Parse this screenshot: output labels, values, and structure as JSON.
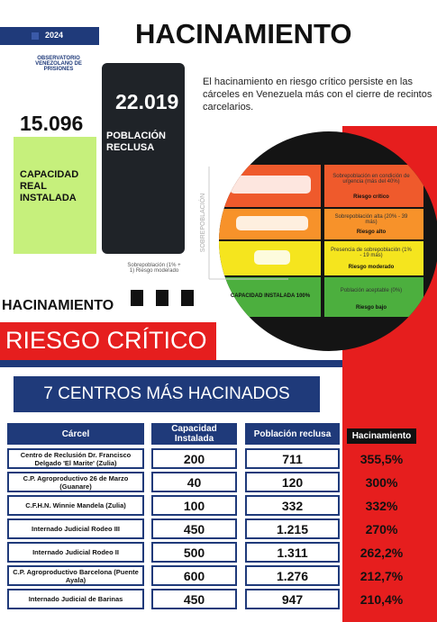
{
  "header": {
    "year": "2024",
    "logo": "OBSERVATORIO VENEZOLANO DE PRISIONES",
    "title": "HACINAMIENTO",
    "description": "El hacinamiento en riesgo crítico persiste en las cárceles en Venezuela más con el cierre de recintos carcelarios."
  },
  "capacity": {
    "value": "15.096",
    "label": "CAPACIDAD REAL INSTALADA"
  },
  "population": {
    "value": "22.019",
    "label": "POBLACIÓN RECLUSA"
  },
  "scale": {
    "axis": "SOBREPOBLACIÓN",
    "levels": [
      {
        "note": "Sobrepoblación en condición de urgencia (más del 40%)",
        "risk": "Riesgo crítico"
      },
      {
        "note": "Sobrepoblación alta (20% - 39 más)",
        "risk": "Riesgo alto"
      },
      {
        "note": "Presencia de sobrepoblación (1% - 19 más)",
        "risk": "Riesgo moderado"
      },
      {
        "note": "Población aceptable (0%)",
        "risk": "Riesgo bajo"
      }
    ],
    "base": "CAPACIDAD INSTALADA 100%",
    "example": "Sobrepoblación (1% + 1) Riesgo moderado"
  },
  "section": {
    "label": "HACINAMIENTO",
    "banner": "RIESGO CRÍTICO",
    "subtitle": "7 CENTROS MÁS HACINADOS"
  },
  "table": {
    "headers": [
      "Cárcel",
      "Capacidad Instalada",
      "Población reclusa",
      "Hacinamiento"
    ],
    "rows": [
      [
        "Centro de Reclusión Dr. Francisco Delgado 'El Marite' (Zulia)",
        "200",
        "711",
        "355,5%"
      ],
      [
        "C.P. Agroproductivo 26 de Marzo (Guanare)",
        "40",
        "120",
        "300%"
      ],
      [
        "C.F.H.N. Winnie Mandela (Zulia)",
        "100",
        "332",
        "332%"
      ],
      [
        "Internado Judicial Rodeo III",
        "450",
        "1.215",
        "270%"
      ],
      [
        "Internado Judicial Rodeo II",
        "500",
        "1.311",
        "262,2%"
      ],
      [
        "C.P. Agroproductivo Barcelona (Puente Ayala)",
        "600",
        "1.276",
        "212,7%"
      ],
      [
        "Internado Judicial de Barinas",
        "450",
        "947",
        "210,4%"
      ]
    ]
  }
}
